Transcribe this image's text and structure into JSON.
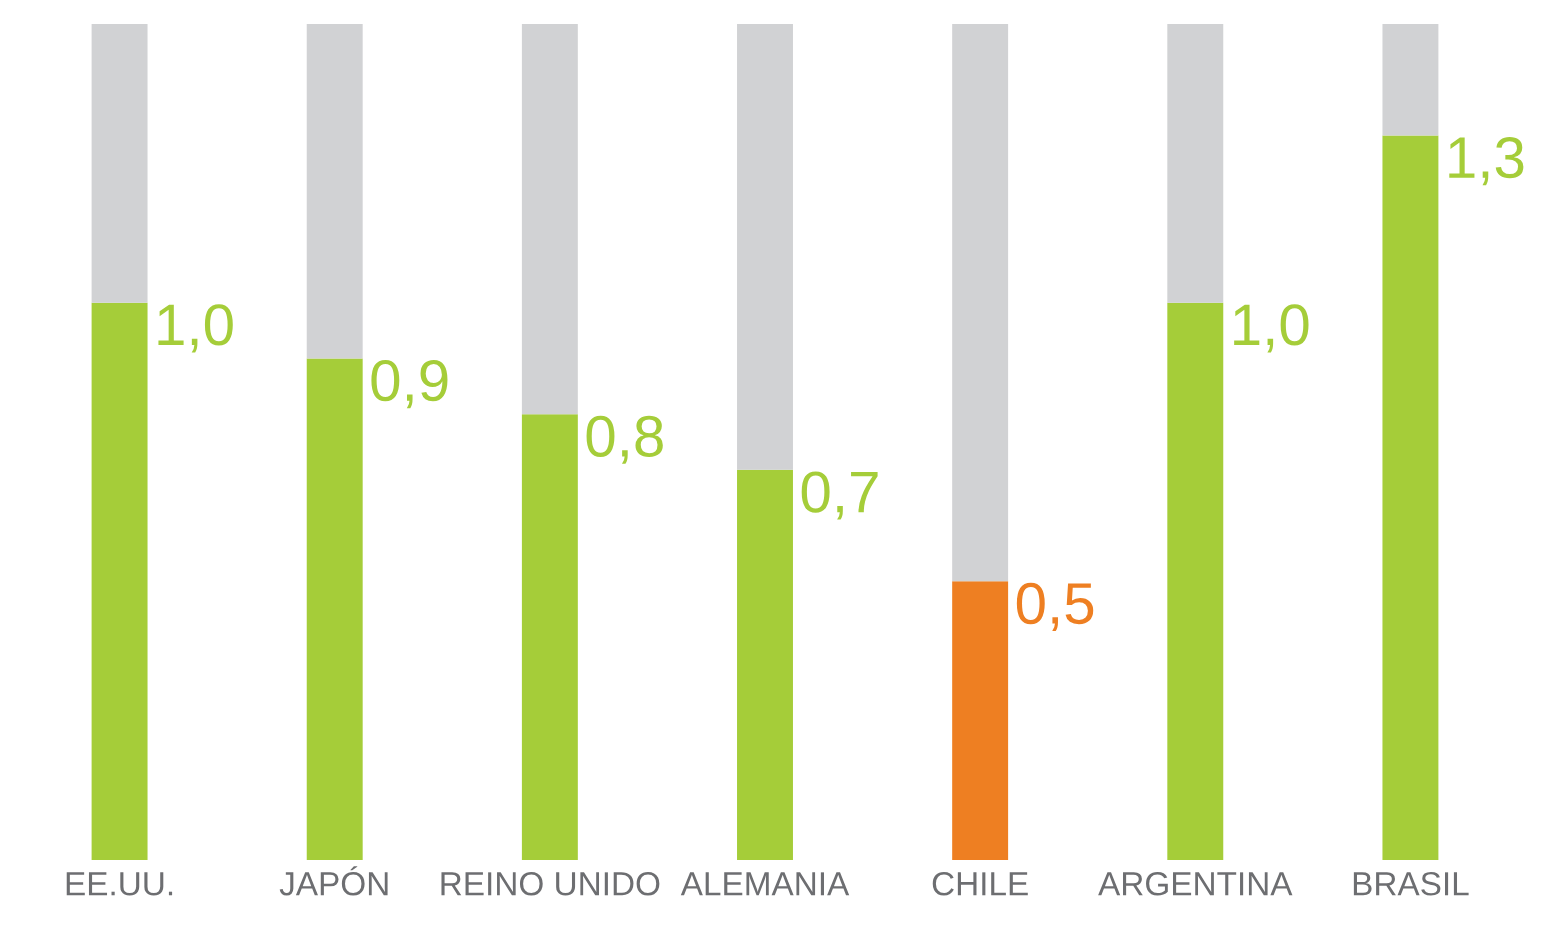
{
  "chart_data": {
    "type": "bar",
    "stacked": true,
    "categories": [
      "EE.UU.",
      "JAPÓN",
      "REINO UNIDO",
      "ALEMANIA",
      "CHILE",
      "ARGENTINA",
      "BRASIL"
    ],
    "series": [
      {
        "colors": [
          "#a5cd39",
          "#a5cd39",
          "#a5cd39",
          "#a5cd39",
          "#ee7f22",
          "#a5cd39",
          "#a5cd39"
        ],
        "values": [
          1.0,
          0.9,
          0.8,
          0.7,
          0.5,
          1.0,
          1.3
        ],
        "value_labels": [
          "1,0",
          "0,9",
          "0,8",
          "0,7",
          "0,5",
          "1,0",
          "1,3"
        ]
      },
      {
        "color": "#d1d2d4",
        "values": [
          0.5,
          0.6,
          0.7,
          0.8,
          1.0,
          0.5,
          0.2
        ]
      }
    ],
    "ylim": [
      0,
      1.5
    ],
    "tick_labels": "x",
    "grid": false,
    "legend": false
  }
}
